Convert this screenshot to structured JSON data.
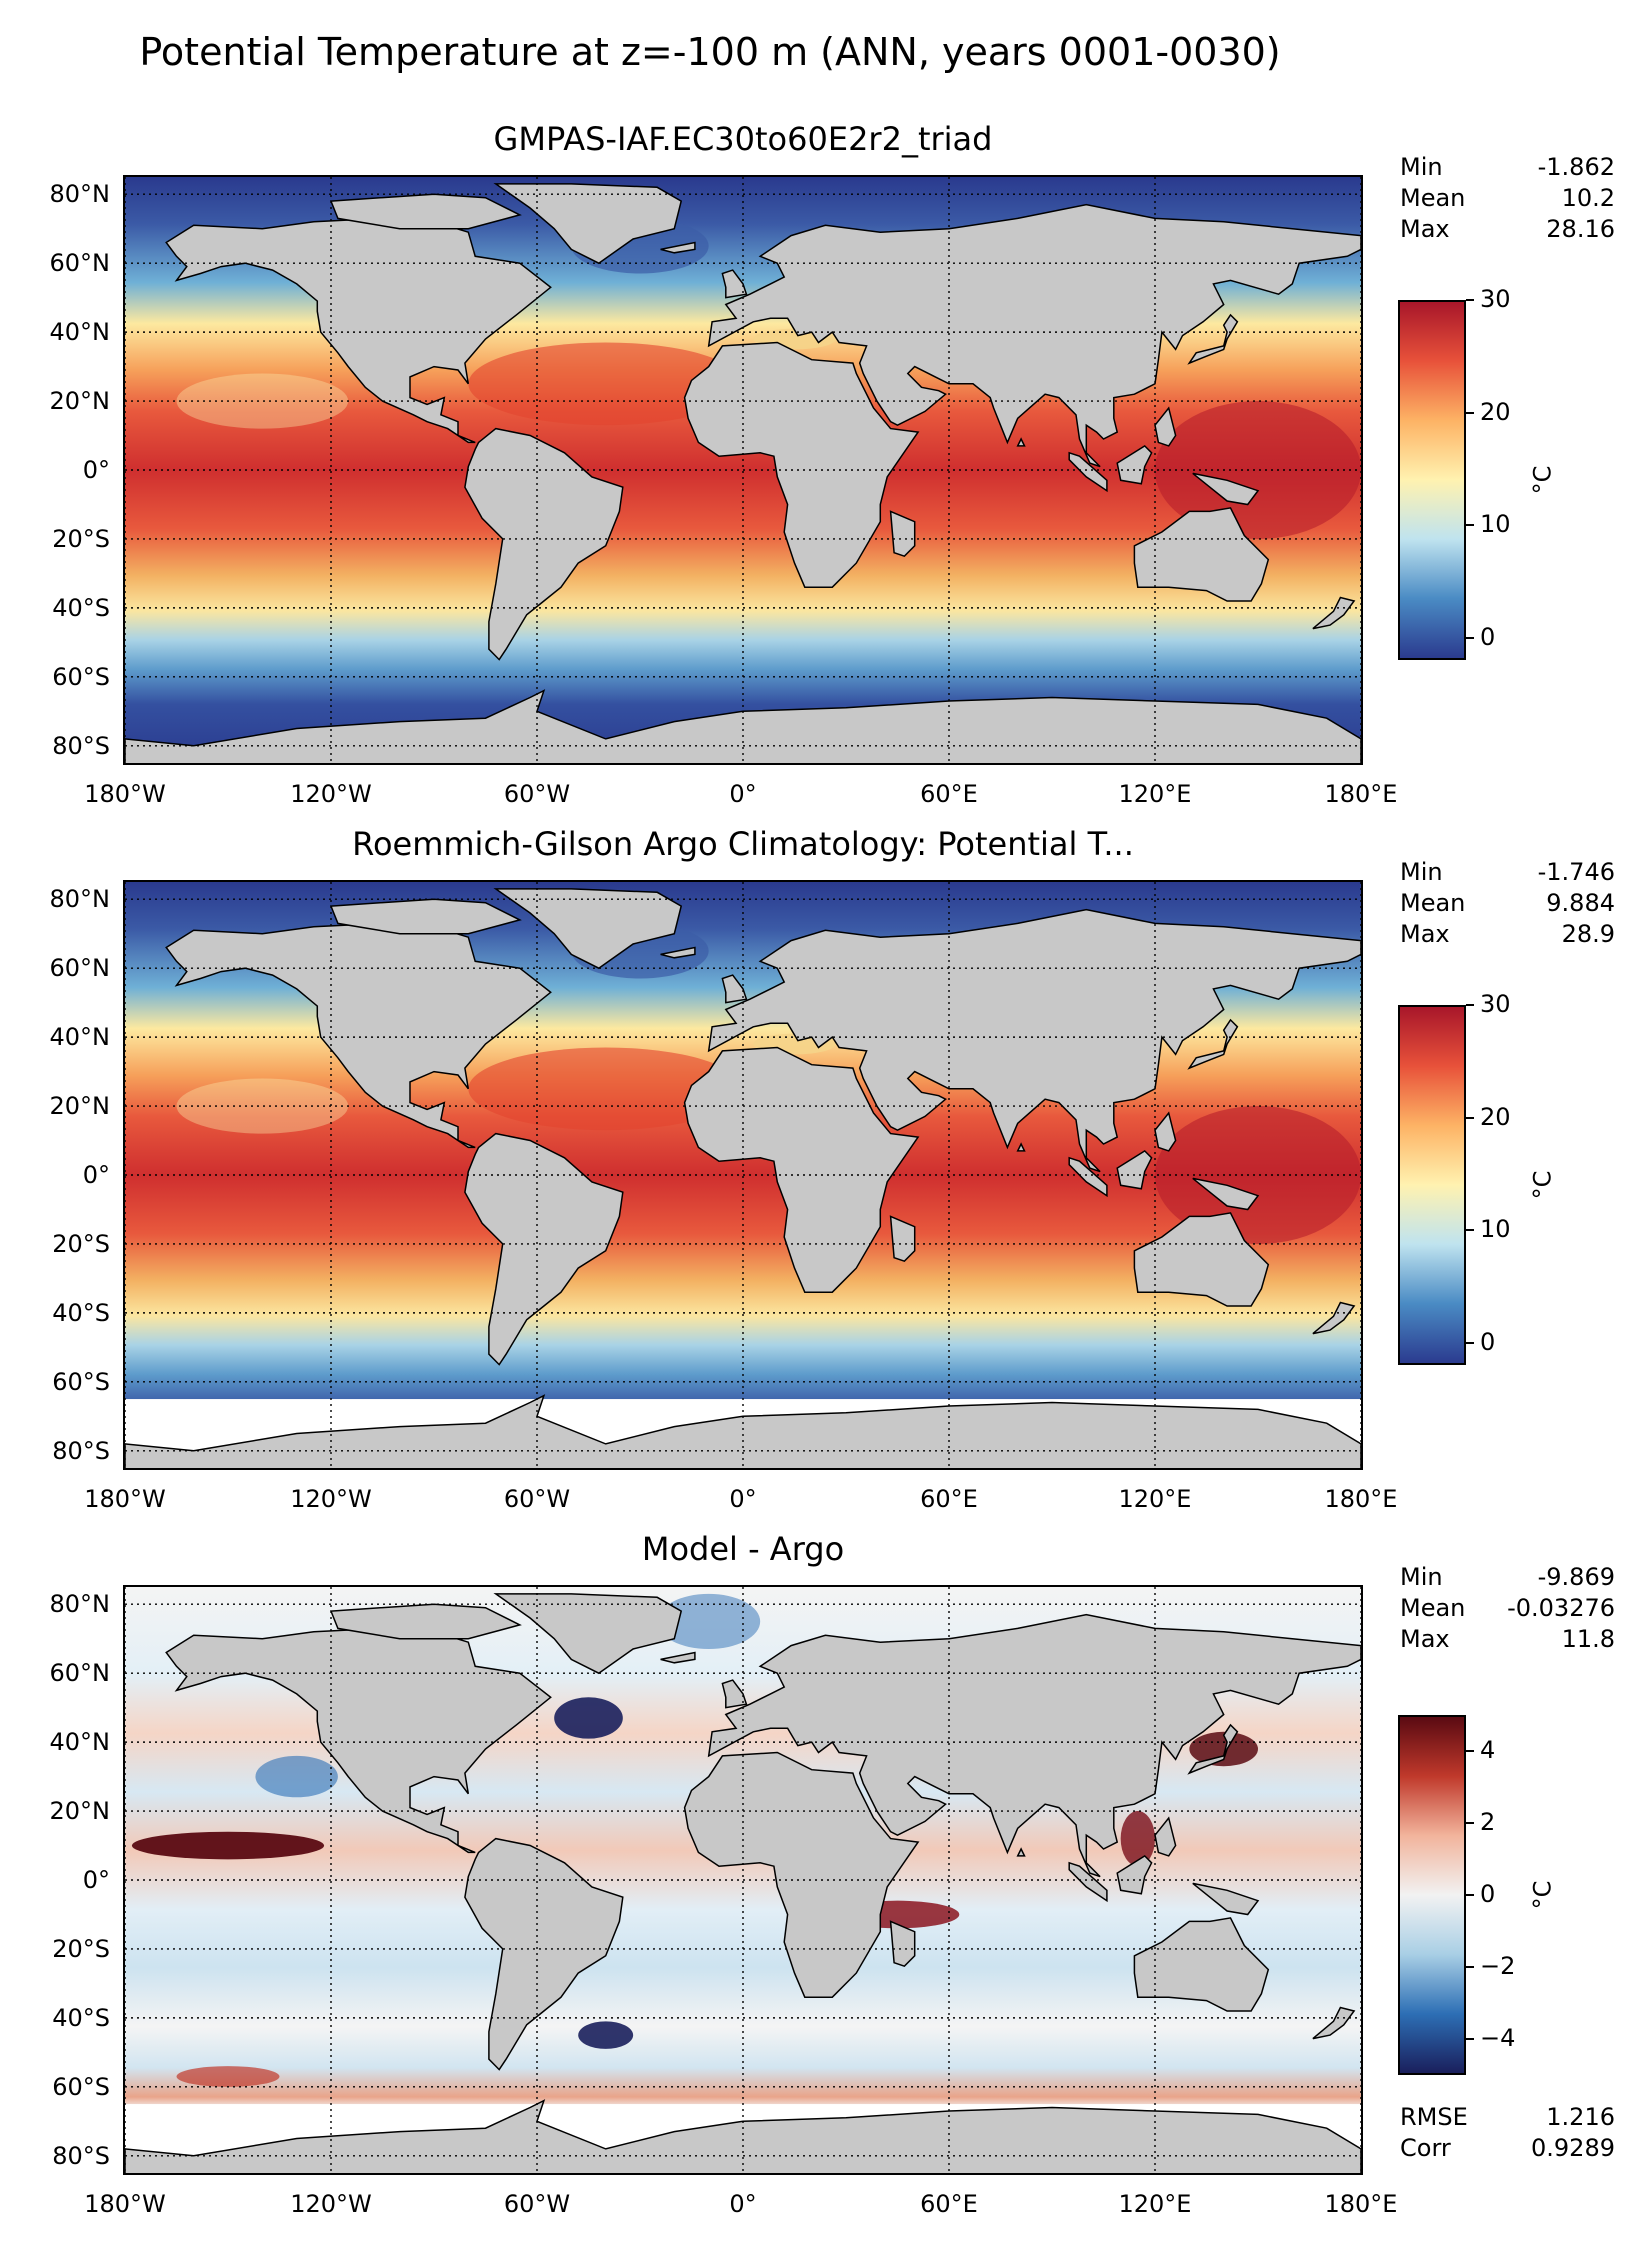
{
  "title": "Potential Temperature at z=-100 m (ANN, years 0001-0030)",
  "lat_ticks": [
    "80°N",
    "60°N",
    "40°N",
    "20°N",
    "0°",
    "20°S",
    "40°S",
    "60°S",
    "80°S"
  ],
  "lon_ticks": [
    "180°W",
    "120°W",
    "60°W",
    "0°",
    "60°E",
    "120°E",
    "180°E"
  ],
  "panels": [
    {
      "title": "GMPAS-IAF.EC30to60E2r2_triad",
      "stats": [
        {
          "label": "Min",
          "value": "-1.862"
        },
        {
          "label": "Mean",
          "value": "10.2"
        },
        {
          "label": "Max",
          "value": "28.16"
        }
      ],
      "colorbar": {
        "ticks": [
          "30",
          "20",
          "10",
          "0"
        ],
        "range": [
          -2,
          30
        ],
        "unit": "°C",
        "colors": [
          "#2b3b8f",
          "#4a8bc4",
          "#bfe3ef",
          "#fff2b0",
          "#fdb365",
          "#e8523a",
          "#a8162a"
        ]
      }
    },
    {
      "title": "Roemmich-Gilson Argo Climatology: Potential T...",
      "stats": [
        {
          "label": "Min",
          "value": "-1.746"
        },
        {
          "label": "Mean",
          "value": "9.884"
        },
        {
          "label": "Max",
          "value": "28.9"
        }
      ],
      "colorbar": {
        "ticks": [
          "30",
          "20",
          "10",
          "0"
        ],
        "range": [
          -2,
          30
        ],
        "unit": "°C",
        "colors": [
          "#2b3b8f",
          "#4a8bc4",
          "#bfe3ef",
          "#fff2b0",
          "#fdb365",
          "#e8523a",
          "#a8162a"
        ]
      }
    },
    {
      "title": "Model - Argo",
      "stats": [
        {
          "label": "Min",
          "value": "-9.869"
        },
        {
          "label": "Mean",
          "value": "-0.03276"
        },
        {
          "label": "Max",
          "value": "11.8"
        }
      ],
      "extra_stats": [
        {
          "label": "RMSE",
          "value": "1.216"
        },
        {
          "label": "Corr",
          "value": "0.9289"
        }
      ],
      "colorbar": {
        "ticks": [
          "4",
          "2",
          "0",
          "−2",
          "−4"
        ],
        "range": [
          -5,
          5
        ],
        "unit": "°C",
        "colors": [
          "#1a1f5c",
          "#2d6fb5",
          "#a9cfe5",
          "#f2f2f2",
          "#f2b49c",
          "#c0392b",
          "#5a0a12"
        ]
      }
    }
  ],
  "chart_data": {
    "type": "heatmap",
    "title": "Potential Temperature at z=-100 m (ANN, years 0001-0030)",
    "projection": "plate-carree",
    "x_ticks": [
      "180°W",
      "120°W",
      "60°W",
      "0°",
      "60°E",
      "120°E",
      "180°E"
    ],
    "y_ticks": [
      "80°N",
      "60°N",
      "40°N",
      "20°N",
      "0°",
      "20°S",
      "40°S",
      "60°S",
      "80°S"
    ],
    "xlim": [
      -180,
      180
    ],
    "ylim": [
      -85,
      85
    ],
    "grid": true,
    "panels": [
      {
        "name": "GMPAS-IAF.EC30to60E2r2_triad",
        "min": -1.862,
        "mean": 10.2,
        "max": 28.16,
        "colorbar_range": [
          -2,
          30
        ],
        "unit": "°C"
      },
      {
        "name": "Roemmich-Gilson Argo Climatology: Potential T...",
        "min": -1.746,
        "mean": 9.884,
        "max": 28.9,
        "colorbar_range": [
          -2,
          30
        ],
        "unit": "°C"
      },
      {
        "name": "Model - Argo",
        "min": -9.869,
        "mean": -0.03276,
        "max": 11.8,
        "rmse": 1.216,
        "corr": 0.9289,
        "colorbar_range": [
          -5,
          5
        ],
        "unit": "°C"
      }
    ]
  }
}
